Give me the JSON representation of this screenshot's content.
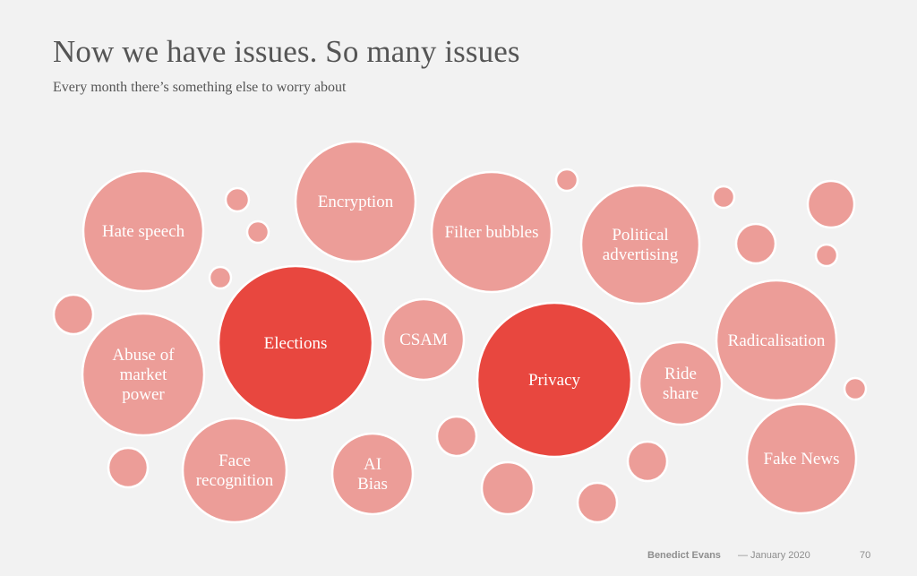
{
  "title": "Now we have issues. So many issues",
  "subtitle": "Every month there’s something else to worry about",
  "colors": {
    "bubble_light": "#ec9d98",
    "bubble_strong": "#e8473f",
    "bubble_stroke": "#ffffff",
    "background": "#f2f2f2"
  },
  "issues": [
    {
      "id": "hate-speech",
      "label": [
        "Hate speech"
      ],
      "emphasis": "light"
    },
    {
      "id": "encryption",
      "label": [
        "Encryption"
      ],
      "emphasis": "light"
    },
    {
      "id": "filter-bubbles",
      "label": [
        "Filter bubbles"
      ],
      "emphasis": "light"
    },
    {
      "id": "political-advertising",
      "label": [
        "Political",
        "advertising"
      ],
      "emphasis": "light"
    },
    {
      "id": "elections",
      "label": [
        "Elections"
      ],
      "emphasis": "strong"
    },
    {
      "id": "csam",
      "label": [
        "CSAM"
      ],
      "emphasis": "light"
    },
    {
      "id": "privacy",
      "label": [
        "Privacy"
      ],
      "emphasis": "strong"
    },
    {
      "id": "radicalisation",
      "label": [
        "Radicalisation"
      ],
      "emphasis": "light"
    },
    {
      "id": "abuse-of-market-power",
      "label": [
        "Abuse of",
        "market",
        "power"
      ],
      "emphasis": "light"
    },
    {
      "id": "ride-share",
      "label": [
        "Ride",
        "share"
      ],
      "emphasis": "light"
    },
    {
      "id": "face-recognition",
      "label": [
        "Face",
        "recognition"
      ],
      "emphasis": "light"
    },
    {
      "id": "ai-bias",
      "label": [
        "AI",
        "Bias"
      ],
      "emphasis": "light"
    },
    {
      "id": "fake-news",
      "label": [
        "Fake News"
      ],
      "emphasis": "light"
    }
  ],
  "footer": {
    "author": "Benedict Evans",
    "date": "— January 2020",
    "page": "70"
  }
}
